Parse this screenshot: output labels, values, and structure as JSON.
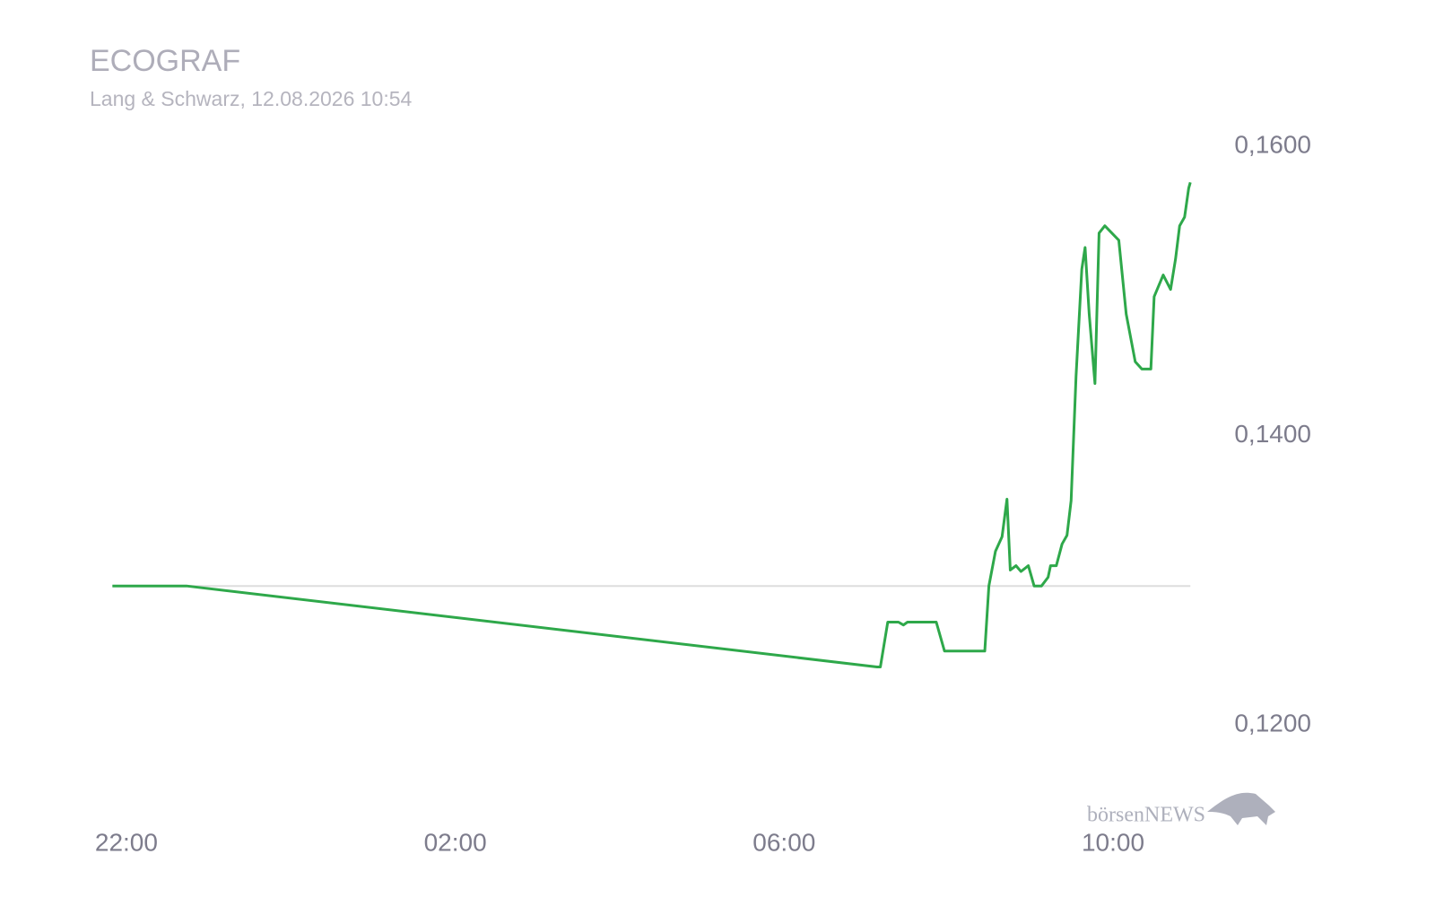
{
  "chart_data": {
    "type": "line",
    "title": "ECOGRAF",
    "subtitle": "Lang & Schwarz, 12.08.2026 10:54",
    "watermark": "börsenNEWS",
    "x": [
      21.83,
      22.73,
      31.13,
      31.17,
      31.26,
      31.39,
      31.45,
      31.5,
      31.85,
      31.95,
      32.44,
      32.49,
      32.57,
      32.65,
      32.71,
      32.75,
      32.82,
      32.88,
      32.97,
      33.04,
      33.13,
      33.21,
      33.24,
      33.31,
      33.38,
      33.44,
      33.49,
      33.55,
      33.62,
      33.66,
      33.71,
      33.78,
      33.83,
      33.9,
      34.07,
      34.16,
      34.27,
      34.35,
      34.46,
      34.5,
      34.61,
      34.7,
      34.76,
      34.81,
      34.87,
      34.92,
      34.94
    ],
    "series": [
      {
        "name": "ECOGRAF",
        "color": "#2ea84a",
        "values": [
          0.1296,
          0.1296,
          0.124,
          0.124,
          0.1271,
          0.1271,
          0.1269,
          0.1271,
          0.1271,
          0.1251,
          0.1251,
          0.1296,
          0.132,
          0.133,
          0.1356,
          0.1307,
          0.131,
          0.1306,
          0.131,
          0.1296,
          0.1296,
          0.1302,
          0.131,
          0.131,
          0.1325,
          0.1331,
          0.1355,
          0.1441,
          0.1515,
          0.153,
          0.1484,
          0.1436,
          0.154,
          0.1545,
          0.1535,
          0.1484,
          0.1451,
          0.1446,
          0.1446,
          0.1496,
          0.1511,
          0.1501,
          0.1522,
          0.1545,
          0.1551,
          0.1571,
          0.1575
        ]
      }
    ],
    "reference": 0.1296,
    "reference_color": "#dddddd",
    "xlim": [
      21.75,
      35.0
    ],
    "xticks": [
      {
        "value": 22,
        "label": "22:00"
      },
      {
        "value": 26,
        "label": "02:00"
      },
      {
        "value": 30,
        "label": "06:00"
      },
      {
        "value": 34,
        "label": "10:00"
      }
    ],
    "ylim": [
      0.115,
      0.165
    ],
    "yticks": [
      {
        "value": 0.12,
        "label": "0,1200"
      },
      {
        "value": 0.14,
        "label": "0,1400"
      },
      {
        "value": 0.16,
        "label": "0,1600"
      }
    ]
  }
}
